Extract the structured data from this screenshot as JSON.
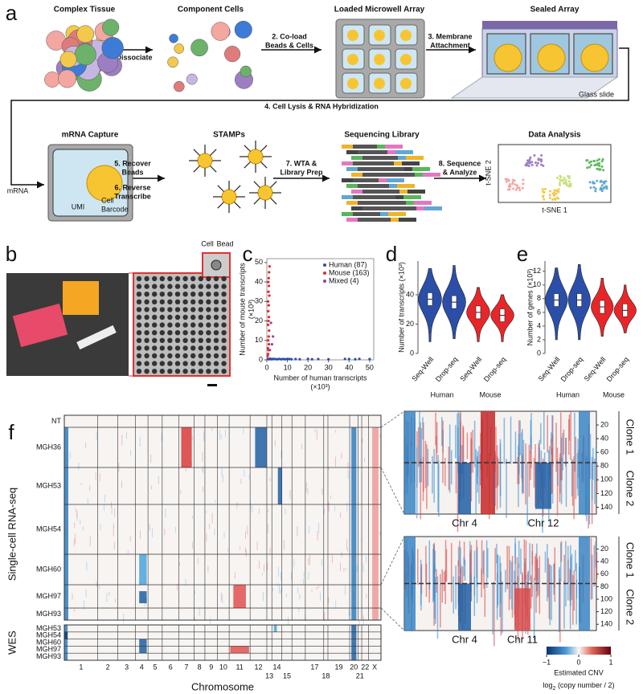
{
  "panel_a": {
    "label": "a",
    "titles": [
      "Complex Tissue",
      "Component Cells",
      "Loaded Microwell Array",
      "Sealed Array",
      "mRNA Capture",
      "STAMPs",
      "Sequencing Library",
      "Data Analysis"
    ],
    "steps": [
      [
        "1. Dissociate"
      ],
      [
        "2. Co-load",
        "Beads & Cells"
      ],
      [
        "3. Membrane",
        "Attachment"
      ],
      [
        "4. Cell Lysis & RNA Hybridization"
      ],
      [
        "5. Recover",
        "Beads"
      ],
      [
        "6. Reverse",
        "Transcribe"
      ],
      [
        "7. WTA &",
        "Library Prep"
      ],
      [
        "8. Sequence",
        "& Analyze"
      ]
    ],
    "annotations": [
      "Glass slide",
      "mRNA",
      "UMI",
      "Cell",
      "Barcode",
      "t-SNE 1",
      "t-SNE 2"
    ]
  },
  "panel_b": {
    "label": "b",
    "annotations": [
      "Cell",
      "Bead"
    ]
  },
  "panel_c": {
    "label": "c",
    "xlabel": [
      "Number of human transcripts",
      "(×10³)"
    ],
    "ylabel": [
      "Number of mouse transcripts",
      "(×10³)"
    ],
    "xlim": [
      0,
      52
    ],
    "ylim": [
      0,
      52
    ],
    "xticks": [
      0,
      10,
      20,
      30,
      40,
      50
    ],
    "yticks": [
      0,
      10,
      20,
      30,
      40,
      50
    ],
    "series": [
      {
        "name": "Human (87)",
        "color": "#2b4fa8",
        "x": [
          0.5,
          1,
          1.5,
          2,
          2.5,
          3,
          4,
          5,
          6,
          7,
          8,
          9,
          10,
          11,
          12,
          14,
          16,
          20,
          22,
          25,
          30,
          38,
          40,
          43,
          45,
          50
        ],
        "values": [
          0.5,
          0.3,
          0.6,
          0.4,
          0.3,
          0.5,
          0.4,
          0.3,
          0.5,
          0.3,
          0.4,
          0.3,
          0.5,
          0.4,
          0.3,
          0.4,
          0.3,
          0.5,
          0.3,
          0.4,
          0.3,
          0.5,
          0.4,
          0.3,
          0.5,
          0.4
        ]
      },
      {
        "name": "Mouse (163)",
        "color": "#e8262a",
        "x": [
          0.4,
          0.6,
          0.8,
          0.5,
          1,
          0.7,
          0.9,
          1.1,
          0.6,
          0.8,
          1,
          0.7,
          0.9,
          0.6,
          1.2,
          0.8,
          1,
          0.7,
          0.9,
          1.1,
          1.3
        ],
        "values": [
          2,
          3,
          5,
          6,
          8,
          10,
          12,
          15,
          18,
          20,
          22,
          25,
          28,
          30,
          33,
          35,
          38,
          40,
          42,
          45,
          48
        ]
      },
      {
        "name": "Mixed (4)",
        "color": "#8e44ad",
        "x": [
          1.5,
          2,
          2.5,
          3
        ],
        "values": [
          5,
          19,
          8,
          12
        ]
      }
    ]
  },
  "panel_d": {
    "label": "d",
    "ylabel": "Number of transcripts (×10³)",
    "ylim": [
      0,
      63
    ],
    "yticks": [
      0,
      20,
      40
    ],
    "categories": [
      "Seq-Well",
      "Drop-seq",
      "Seq-Well",
      "Drop-seq"
    ],
    "groups": [
      "Human",
      "Mouse"
    ],
    "group_colors": [
      "#2b4fa8",
      "#e8262a"
    ],
    "medians": [
      37,
      35,
      28,
      26
    ],
    "min": [
      8,
      10,
      8,
      8
    ],
    "max": [
      58,
      60,
      45,
      40
    ]
  },
  "panel_e": {
    "label": "e",
    "ylabel": "Number of genes (×10³)",
    "ylim": [
      0,
      13.5
    ],
    "yticks": [
      0,
      2,
      4,
      6,
      8,
      10,
      12
    ],
    "categories": [
      "Seq-Well",
      "Drop-seq",
      "Seq-Well",
      "Drop-seq"
    ],
    "groups": [
      "Human",
      "Mouse"
    ],
    "group_colors": [
      "#2b4fa8",
      "#e8262a"
    ],
    "medians": [
      7.8,
      7.8,
      6.8,
      6.3
    ],
    "min": [
      2,
      2,
      2.5,
      3
    ],
    "max": [
      12.5,
      13,
      11,
      10
    ]
  },
  "panel_f": {
    "label": "f",
    "row_title": "Single-cell RNA-seq",
    "samples": [
      "NT",
      "MGH36",
      "MGH53",
      "MGH54",
      "MGH60",
      "MGH97",
      "MGH93"
    ],
    "wes_title": "WES",
    "wes_samples": [
      "MGH53",
      "MGH54",
      "MGH60",
      "MGH97",
      "MGH93"
    ],
    "chromosomes": [
      "1",
      "2",
      "3",
      "4",
      "5",
      "6",
      "7",
      "8",
      "9",
      "10",
      "11",
      "12",
      "13",
      "14",
      "15",
      null,
      "17",
      "18",
      "19",
      "20",
      "21",
      "22",
      "X"
    ],
    "xlabel": "Chromosome",
    "zoom_yticks": [
      20,
      40,
      60,
      80,
      100,
      120,
      140
    ],
    "zoom_top": {
      "clones": [
        "Clone 1",
        "Clone 2"
      ],
      "chr": [
        "Chr 4",
        "Chr 12"
      ]
    },
    "zoom_bottom": {
      "clones": [
        "Clone 1",
        "Clone 2"
      ],
      "chr": [
        "Chr 4",
        "Chr 11"
      ]
    },
    "colorbar": {
      "ticks": [
        {
          "value": -1,
          "label": "−1"
        },
        0,
        1
      ],
      "title": "Estimated CNV",
      "subtitle": [
        "log",
        "2",
        " (copy number / 2)"
      ]
    }
  }
}
